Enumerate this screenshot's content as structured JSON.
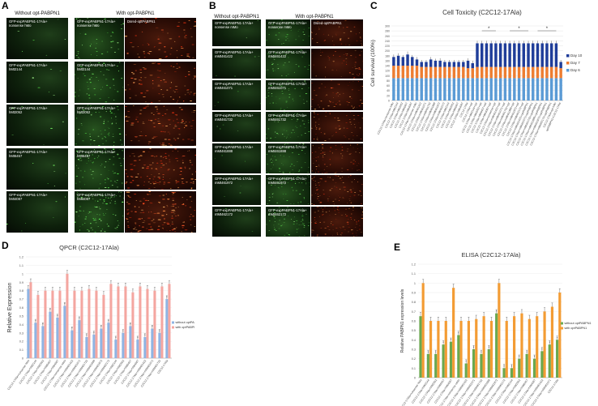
{
  "panelA": {
    "label": "A",
    "without_header": "Without opt-PABPN1",
    "with_header": "With opt-PABPN1",
    "dsred_label": "Dsred-optPABPN1",
    "rows": [
      "GFP-expPABPN1-17Ala+\nnonsense hMo",
      "GFP-expPABPN1-17Ala+\nhMt2144",
      "GFP-expPABPN1-17Ala+\nhMt2052",
      "GFP-expPABPN1-17Ala+\nhMt6457",
      "GFP-expPABPN1-17Ala+\nhMt4087"
    ]
  },
  "panelB": {
    "label": "B",
    "without_header": "Without opt-PABPN1",
    "with_header": "With opt-PABPN1",
    "dsred_label": "Dsred-optPABPN1",
    "rows": [
      "GFP-expPABPN1-17Ala+\nnonsense mMo",
      "GFP-expPABPN1-17Ala+\nmMt461422",
      "GFP-expPABPN1-17Ala+\nmMt461071",
      "GFP-expPABPN1-17Ala+\nmMt461732",
      "GFP-expPABPN1-17Ala+\nmMt461888",
      "GFP-expPABPN1-17Ala+\nmMt461972",
      "GFP-expPABPN1-17Ala+\nmMt462172"
    ]
  },
  "panelC": {
    "label": "C",
    "chart_data": {
      "type": "bar",
      "title": "Cell Toxicity (C2C12-17Ala)",
      "ylabel": "Cell survival (100%)",
      "ylim": [
        0,
        300
      ],
      "yticks": [
        0,
        20,
        40,
        60,
        80,
        100,
        120,
        140,
        160,
        180,
        200,
        220,
        240,
        260,
        280,
        300
      ],
      "legend_position": "right",
      "stacked": true,
      "series": [
        {
          "name": "Day 6",
          "color": "#5b9bd5",
          "values": [
            90,
            90,
            90,
            90,
            90,
            90,
            90,
            90,
            90,
            90,
            90,
            90,
            90,
            90,
            90,
            90,
            90,
            90,
            90,
            90,
            90,
            90,
            90,
            90,
            90,
            90,
            90,
            90,
            90,
            90,
            90,
            90,
            90,
            90,
            90,
            90,
            90
          ]
        },
        {
          "name": "Day 7",
          "color": "#ed7d31",
          "values": [
            50,
            50,
            50,
            50,
            50,
            50,
            45,
            45,
            45,
            45,
            45,
            45,
            45,
            45,
            45,
            45,
            40,
            40,
            45,
            45,
            45,
            45,
            45,
            45,
            45,
            45,
            45,
            45,
            45,
            45,
            45,
            45,
            45,
            45,
            45,
            45,
            40
          ]
        },
        {
          "name": "Day 10",
          "color": "#1f3d99",
          "values": [
            35,
            40,
            35,
            45,
            35,
            25,
            20,
            20,
            30,
            25,
            25,
            20,
            20,
            20,
            20,
            20,
            30,
            20,
            95,
            95,
            95,
            95,
            95,
            95,
            95,
            95,
            95,
            95,
            95,
            95,
            95,
            95,
            95,
            95,
            95,
            95,
            25
          ]
        }
      ],
      "errors": [
        10,
        10,
        8,
        12,
        8,
        10,
        8,
        8,
        10,
        8,
        10,
        8,
        8,
        8,
        8,
        8,
        10,
        10,
        10,
        10,
        10,
        10,
        10,
        10,
        10,
        10,
        10,
        10,
        10,
        10,
        10,
        10,
        10,
        10,
        10,
        10,
        8
      ],
      "significance": [
        [
          19,
          22
        ],
        [
          25,
          29
        ],
        [
          31,
          35
        ]
      ],
      "categories": [
        "C2C12-17Ala+nonsense hMo",
        "C2C12-17Ala+hMt2144",
        "C2C12-17Ala+hMt2052",
        "C2C12-17Ala+hMt6457",
        "C2C12-17Ala+hMt4087",
        "C2C12-17Ala+nonsense mMo",
        "C2C12-17Ala+mMt461422",
        "C2C12-17Ala+mMt461071",
        "C2C12-17Ala+mMt461732",
        "C2C12-17Ala+mMt461888",
        "C2C12-17Ala+mMt461972",
        "C2C12-17Ala+mMt462172",
        "C2C12-17Ala+hMt2144",
        "C2C12-17Ala+hMt2052",
        "C2C12-17Ala+hMt6457",
        "C2C12-17Ala+hMt4087",
        "C2C12-17Ala",
        "C2C12-17Ala+opt",
        "C2C12-17Ala+hMt2144+opt",
        "C2C12-17Ala+hMt2052+opt",
        "C2C12-17Ala+hMt6457+opt",
        "C2C12-17Ala+hMt4087+opt",
        "C2C12-17Ala+nonsense+opt",
        "C2C12-17Ala+mMt461422+opt",
        "C2C12-17Ala+mMt461071+opt",
        "C2C12-17Ala+mMt461732+opt",
        "C2C12-17Ala+mMt461888+opt",
        "C2C12-17Ala+mMt461972+opt",
        "C2C12-17Ala+mMt462172+opt",
        "C2C12-17Ala+mMt461422+optPABPN1",
        "C2C12-17Ala+mMt461071+optPABPN1",
        "C2C12-17Ala+mMt461732+optPABPN1",
        "C2C12-17Ala+mMt461888+optPABPN1",
        "C2C12-17Ala+mMt461972+optPABPN1",
        "C2C12-17Ala+mMt462172+optPABPN1",
        "C2C12-17Ala+opt-hMo",
        "optPABPN1+C2C12-17Ala"
      ]
    }
  },
  "panelD": {
    "label": "D",
    "chart_data": {
      "type": "bar",
      "title": "QPCR (C2C12-17Ala)",
      "ylabel": "Relative Expression",
      "ylim": [
        0,
        1.2
      ],
      "yticks": [
        0,
        0.1,
        0.2,
        0.3,
        0.4,
        0.5,
        0.6,
        0.7,
        0.8,
        0.9,
        1,
        1.1,
        1.2
      ],
      "legend_position": "right",
      "series": [
        {
          "name": "without optPABPN1",
          "color": "#8fb4e3",
          "values": [
            0.82,
            0.42,
            0.38,
            0.55,
            0.48,
            0.62,
            0.33,
            0.45,
            0.25,
            0.28,
            0.35,
            0.42,
            0.22,
            0.3,
            0.38,
            0.22,
            0.25,
            0.35,
            0.3,
            0.7
          ]
        },
        {
          "name": "with optPABPN1",
          "color": "#f4a6a0",
          "values": [
            0.9,
            0.75,
            0.8,
            0.8,
            0.8,
            1.0,
            0.8,
            0.8,
            0.82,
            0.8,
            0.75,
            0.88,
            0.85,
            0.85,
            0.78,
            0.85,
            0.82,
            0.8,
            0.85,
            0.88
          ]
        }
      ],
      "categories": [
        "C2C12-17Ala+nonsense hMo",
        "C2C12-17Ala+hMt2144",
        "C2C12-17Ala+hMt2052",
        "C2C12-17Ala+hMt6457",
        "C2C12-17Ala+hMt4087",
        "C2C12-17Ala+nonsense mMo",
        "C2C12-17Ala+mMt461422",
        "C2C12-17Ala+mMt461071",
        "C2C12-17Ala+mMt461732",
        "C2C12-17Ala+mMt461888",
        "C2C12-17Ala+mMt461972",
        "C2C12-17Ala+mMt462172",
        "C2C12-17Ala+hMt2144",
        "C2C12-17Ala+hMt2052",
        "C2C12-17Ala+hMt6457",
        "C2C12-17Ala+hMt4087",
        "C2C12-17Ala+mMt461422",
        "C2C12-17Ala+mMt461071",
        "C2C12-17Ala+mMt461732",
        "C2C12-17Ala"
      ]
    }
  },
  "panelE": {
    "label": "E",
    "chart_data": {
      "type": "bar",
      "title": "ELISA (C2C12-17Ala)",
      "ylabel": "Relative PABPN1 expression levels",
      "ylim": [
        0,
        1.2
      ],
      "yticks": [
        0,
        0.1,
        0.2,
        0.3,
        0.4,
        0.5,
        0.6,
        0.7,
        0.8,
        0.9,
        1,
        1.1,
        1.2
      ],
      "legend_position": "right",
      "series": [
        {
          "name": "without optPABPN1",
          "color": "#6aa84f",
          "values": [
            0.65,
            0.25,
            0.25,
            0.35,
            0.38,
            0.45,
            0.15,
            0.3,
            0.25,
            0.3,
            0.68,
            0.1,
            0.1,
            0.2,
            0.25,
            0.2,
            0.28,
            0.35,
            0.4
          ]
        },
        {
          "name": "with optPABPN1",
          "color": "#f39c34",
          "values": [
            1.0,
            0.6,
            0.6,
            0.6,
            0.95,
            0.6,
            0.6,
            0.62,
            0.65,
            0.6,
            1.0,
            0.6,
            0.65,
            0.68,
            0.62,
            0.65,
            0.7,
            0.75,
            0.9
          ]
        }
      ],
      "categories": [
        "C2C12-17Ala+nonsense hMo",
        "C2C12-17Ala+hMt2144",
        "C2C12-17Ala+hMt2052",
        "C2C12-17Ala+hMt6457",
        "C2C12-17Ala+hMt4087",
        "C2C12-17Ala+nonsense mMo",
        "C2C12-17Ala+mMt461422",
        "C2C12-17Ala+mMt461071",
        "C2C12-17Ala+mMt461732",
        "C2C12-17Ala+mMt461888",
        "C2C12-17Ala+mMt461972",
        "C2C12-17Ala+mMt462172",
        "C2C12-17Ala+hMt2144",
        "C2C12-17Ala+hMt2052",
        "C2C12-17Ala+hMt6457",
        "C2C12-17Ala+hMt4087",
        "C2C12-17Ala+mMt461422",
        "C2C12-17Ala+mMt461071",
        "C2C12-17Ala"
      ]
    }
  }
}
